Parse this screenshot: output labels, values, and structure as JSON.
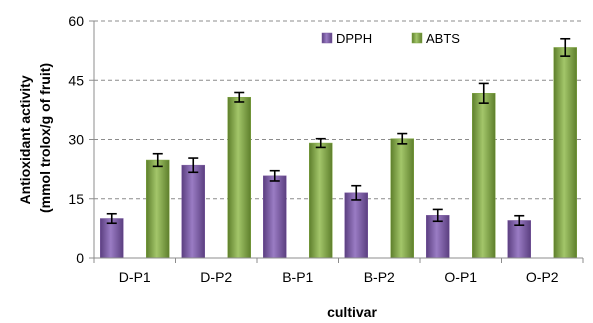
{
  "chart_data": {
    "type": "bar",
    "title": "",
    "xlabel": "cultivar",
    "ylabel_lines": [
      "Antioxidant activity",
      "(mmol trolox/g of fruit)"
    ],
    "categories": [
      "D-P1",
      "D-P2",
      "B-P1",
      "B-P2",
      "O-P1",
      "O-P2"
    ],
    "series": [
      {
        "name": "DPPH",
        "color": "#7b5aa0",
        "values": [
          10,
          23.5,
          20.8,
          16.5,
          10.8,
          9.5
        ],
        "errors": [
          1.2,
          1.8,
          1.3,
          1.8,
          1.5,
          1.2
        ]
      },
      {
        "name": "ABTS",
        "color": "#7fa542",
        "values": [
          24.8,
          40.7,
          29.1,
          30.2,
          41.7,
          53.3
        ],
        "errors": [
          1.6,
          1.2,
          1.1,
          1.3,
          2.5,
          2.2
        ]
      }
    ],
    "ylim": [
      0,
      60
    ],
    "yticks": [
      0,
      15,
      30,
      45,
      60
    ],
    "grid": true,
    "legend_position": "top-center"
  }
}
